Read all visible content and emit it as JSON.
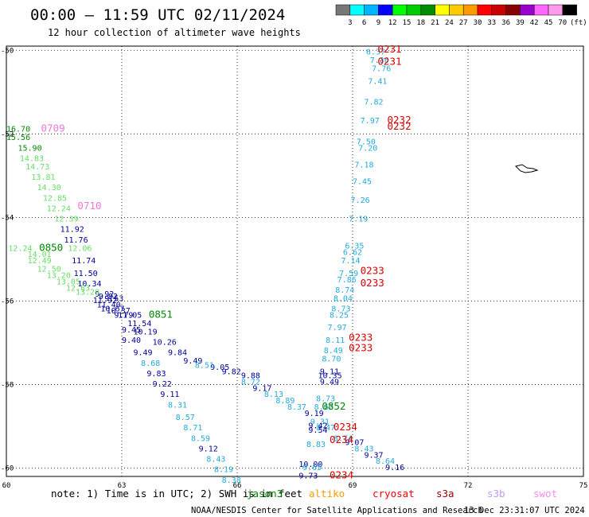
{
  "header": {
    "title": "00:00 – 11:59 UTC 02/11/2024",
    "subtitle": "12 hour collection of altimeter wave heights"
  },
  "scale": {
    "unit": "(ft)",
    "ticks": [
      "3",
      "6",
      "9",
      "12",
      "15",
      "18",
      "21",
      "24",
      "27",
      "30",
      "33",
      "36",
      "39",
      "42",
      "45",
      "70"
    ],
    "colors": [
      "#777777",
      "#00ffff",
      "#00b4ff",
      "#0000ff",
      "#00ff00",
      "#00cc00",
      "#008c00",
      "#ffff00",
      "#ffcc00",
      "#ff9900",
      "#ff0000",
      "#cc0000",
      "#880000",
      "#9900cc",
      "#ff66ff",
      "#ff99ee",
      "#000000"
    ]
  },
  "footer": {
    "note": "note:  1) Time is in UTC;  2) SWH is in feet",
    "credit": "NOAA/NESDIS Center for Satellite Applications and Research",
    "timestamp": "13 Dec 23:31:07 UTC 2024",
    "satellites": [
      {
        "name": "jason3",
        "color": "#008800"
      },
      {
        "name": "altiko",
        "color": "#ff9900"
      },
      {
        "name": "cryosat",
        "color": "#ff0000"
      },
      {
        "name": "s3a",
        "color": "#990000"
      },
      {
        "name": "s3b",
        "color": "#bb99ff"
      },
      {
        "name": "swot",
        "color": "#ff88ee"
      }
    ]
  },
  "chart_data": {
    "type": "scatter",
    "xlim": [
      60,
      75
    ],
    "ylim": [
      -60.2,
      -49.9
    ],
    "x_ticks": [
      "60",
      "63",
      "66",
      "69",
      "72",
      "75"
    ],
    "y_ticks": [
      "-50",
      "-52",
      "-54",
      "-56",
      "-58",
      "-60"
    ],
    "grid": true,
    "colors": {
      "cyan": "#22aadd",
      "blue": "#000099",
      "lightgreen": "#66dd66",
      "green": "#008800",
      "red": "#dd0000",
      "pink": "#ee77dd"
    },
    "labels": [
      {
        "x": 69.35,
        "y": -50.1,
        "text": "6.37",
        "c": "cyan"
      },
      {
        "x": 69.45,
        "y": -50.3,
        "text": "7.36",
        "c": "cyan"
      },
      {
        "x": 69.5,
        "y": -50.5,
        "text": "7.76",
        "c": "cyan"
      },
      {
        "x": 69.4,
        "y": -50.8,
        "text": "7.41",
        "c": "cyan"
      },
      {
        "x": 69.3,
        "y": -51.3,
        "text": "7.82",
        "c": "cyan"
      },
      {
        "x": 69.2,
        "y": -51.75,
        "text": "7.97",
        "c": "cyan"
      },
      {
        "x": 69.1,
        "y": -52.25,
        "text": "7.50",
        "c": "cyan"
      },
      {
        "x": 69.15,
        "y": -52.4,
        "text": "7.20",
        "c": "cyan"
      },
      {
        "x": 69.05,
        "y": -52.8,
        "text": "7.18",
        "c": "cyan"
      },
      {
        "x": 69.0,
        "y": -53.2,
        "text": "7.45",
        "c": "cyan"
      },
      {
        "x": 68.95,
        "y": -53.65,
        "text": "7.26",
        "c": "cyan"
      },
      {
        "x": 68.9,
        "y": -54.1,
        "text": "7.19",
        "c": "cyan"
      },
      {
        "x": 68.8,
        "y": -54.75,
        "text": "6.35",
        "c": "cyan"
      },
      {
        "x": 68.75,
        "y": -54.9,
        "text": "6.62",
        "c": "cyan"
      },
      {
        "x": 68.7,
        "y": -55.1,
        "text": "7.14",
        "c": "cyan"
      },
      {
        "x": 68.65,
        "y": -55.4,
        "text": "7.59",
        "c": "cyan"
      },
      {
        "x": 68.6,
        "y": -55.55,
        "text": "7.86",
        "c": "cyan"
      },
      {
        "x": 68.55,
        "y": -55.8,
        "text": "8.74",
        "c": "cyan"
      },
      {
        "x": 68.5,
        "y": -56.0,
        "text": "8.04",
        "c": "cyan"
      },
      {
        "x": 68.45,
        "y": -56.25,
        "text": "8.73",
        "c": "cyan"
      },
      {
        "x": 68.4,
        "y": -56.4,
        "text": "8.25",
        "c": "cyan"
      },
      {
        "x": 68.35,
        "y": -56.7,
        "text": "7.97",
        "c": "cyan"
      },
      {
        "x": 68.3,
        "y": -57.0,
        "text": "8.11",
        "c": "cyan"
      },
      {
        "x": 68.25,
        "y": -57.25,
        "text": "8.49",
        "c": "cyan"
      },
      {
        "x": 68.2,
        "y": -57.45,
        "text": "8.70",
        "c": "cyan"
      },
      {
        "x": 68.15,
        "y": -57.75,
        "text": "9.11",
        "c": "blue"
      },
      {
        "x": 68.1,
        "y": -57.85,
        "text": "10.35",
        "c": "blue"
      },
      {
        "x": 68.15,
        "y": -58.0,
        "text": "9.49",
        "c": "blue"
      },
      {
        "x": 68.05,
        "y": -58.4,
        "text": "8.73",
        "c": "cyan"
      },
      {
        "x": 68.0,
        "y": -58.6,
        "text": "8.62",
        "c": "cyan"
      },
      {
        "x": 67.75,
        "y": -58.75,
        "text": "9.19",
        "c": "blue"
      },
      {
        "x": 67.9,
        "y": -58.95,
        "text": "9.31",
        "c": "cyan"
      },
      {
        "x": 67.85,
        "y": -59.05,
        "text": "9.42",
        "c": "blue"
      },
      {
        "x": 68.05,
        "y": -59.1,
        "text": "8.47",
        "c": "cyan"
      },
      {
        "x": 67.85,
        "y": -59.15,
        "text": "9.54",
        "c": "blue"
      },
      {
        "x": 67.8,
        "y": -59.5,
        "text": "8.83",
        "c": "cyan"
      },
      {
        "x": 67.6,
        "y": -59.97,
        "text": "10.00",
        "c": "blue"
      },
      {
        "x": 67.7,
        "y": -60.05,
        "text": "9.65",
        "c": "cyan"
      },
      {
        "x": 67.6,
        "y": -60.25,
        "text": "9.73",
        "c": "blue"
      },
      {
        "x": 65.6,
        "y": -57.75,
        "text": "9.82",
        "c": "blue"
      },
      {
        "x": 66.1,
        "y": -57.85,
        "text": "9.88",
        "c": "blue"
      },
      {
        "x": 65.3,
        "y": -57.65,
        "text": "9.05",
        "c": "blue"
      },
      {
        "x": 66.1,
        "y": -58.0,
        "text": "8.72",
        "c": "cyan"
      },
      {
        "x": 66.4,
        "y": -58.15,
        "text": "9.17",
        "c": "blue"
      },
      {
        "x": 66.7,
        "y": -58.3,
        "text": "8.13",
        "c": "cyan"
      },
      {
        "x": 67.0,
        "y": -58.45,
        "text": "8.89",
        "c": "cyan"
      },
      {
        "x": 67.3,
        "y": -58.6,
        "text": "8.37",
        "c": "cyan"
      },
      {
        "x": 68.5,
        "y": -59.35,
        "text": "8.74",
        "c": "cyan"
      },
      {
        "x": 68.8,
        "y": -59.45,
        "text": "9.07",
        "c": "blue"
      },
      {
        "x": 69.05,
        "y": -59.6,
        "text": "8.43",
        "c": "cyan"
      },
      {
        "x": 69.3,
        "y": -59.75,
        "text": "9.37",
        "c": "blue"
      },
      {
        "x": 69.6,
        "y": -59.9,
        "text": "8.64",
        "c": "cyan"
      },
      {
        "x": 69.85,
        "y": -60.05,
        "text": "9.16",
        "c": "blue"
      },
      {
        "x": 62.4,
        "y": -55.95,
        "text": "9.92",
        "c": "blue"
      },
      {
        "x": 62.55,
        "y": -56.0,
        "text": "9.53",
        "c": "blue"
      },
      {
        "x": 62.25,
        "y": -56.05,
        "text": "11.92",
        "c": "blue"
      },
      {
        "x": 62.35,
        "y": -56.15,
        "text": "11.40",
        "c": "blue"
      },
      {
        "x": 62.45,
        "y": -56.25,
        "text": "10.67",
        "c": "blue"
      },
      {
        "x": 62.8,
        "y": -56.4,
        "text": "9.79",
        "c": "blue"
      },
      {
        "x": 62.6,
        "y": -56.3,
        "text": "10.37",
        "c": "blue"
      },
      {
        "x": 62.9,
        "y": -56.4,
        "text": "11.05",
        "c": "blue"
      },
      {
        "x": 63.15,
        "y": -56.6,
        "text": "11.54",
        "c": "blue"
      },
      {
        "x": 63.0,
        "y": -56.75,
        "text": "9.45",
        "c": "blue"
      },
      {
        "x": 63.3,
        "y": -56.8,
        "text": "10.19",
        "c": "blue"
      },
      {
        "x": 63.0,
        "y": -57.0,
        "text": "9.40",
        "c": "blue"
      },
      {
        "x": 63.8,
        "y": -57.05,
        "text": "10.26",
        "c": "blue"
      },
      {
        "x": 63.3,
        "y": -57.3,
        "text": "9.49",
        "c": "blue"
      },
      {
        "x": 64.2,
        "y": -57.3,
        "text": "9.84",
        "c": "blue"
      },
      {
        "x": 64.6,
        "y": -57.5,
        "text": "9.49",
        "c": "blue"
      },
      {
        "x": 64.9,
        "y": -57.6,
        "text": "8.51",
        "c": "cyan"
      },
      {
        "x": 63.5,
        "y": -57.55,
        "text": "8.68",
        "c": "cyan"
      },
      {
        "x": 63.65,
        "y": -57.8,
        "text": "9.83",
        "c": "blue"
      },
      {
        "x": 63.8,
        "y": -58.05,
        "text": "9.22",
        "c": "blue"
      },
      {
        "x": 64.0,
        "y": -58.3,
        "text": "9.11",
        "c": "blue"
      },
      {
        "x": 64.2,
        "y": -58.55,
        "text": "8.31",
        "c": "cyan"
      },
      {
        "x": 64.4,
        "y": -58.85,
        "text": "8.57",
        "c": "cyan"
      },
      {
        "x": 64.6,
        "y": -59.1,
        "text": "8.71",
        "c": "cyan"
      },
      {
        "x": 64.8,
        "y": -59.35,
        "text": "8.59",
        "c": "cyan"
      },
      {
        "x": 65.0,
        "y": -59.6,
        "text": "9.12",
        "c": "blue"
      },
      {
        "x": 65.2,
        "y": -59.85,
        "text": "8.43",
        "c": "cyan"
      },
      {
        "x": 65.4,
        "y": -60.1,
        "text": "8.19",
        "c": "cyan"
      },
      {
        "x": 65.6,
        "y": -60.35,
        "text": "8.38",
        "c": "cyan"
      },
      {
        "x": 60.0,
        "y": -51.95,
        "text": "16.70",
        "c": "green"
      },
      {
        "x": 60.0,
        "y": -52.15,
        "text": "15.56",
        "c": "green"
      },
      {
        "x": 60.3,
        "y": -52.4,
        "text": "15.90",
        "c": "green"
      },
      {
        "x": 60.35,
        "y": -52.65,
        "text": "14.83",
        "c": "lightgreen"
      },
      {
        "x": 60.5,
        "y": -52.85,
        "text": "14.73",
        "c": "lightgreen"
      },
      {
        "x": 60.65,
        "y": -53.1,
        "text": "13.81",
        "c": "lightgreen"
      },
      {
        "x": 60.8,
        "y": -53.35,
        "text": "14.30",
        "c": "lightgreen"
      },
      {
        "x": 60.95,
        "y": -53.6,
        "text": "12.85",
        "c": "lightgreen"
      },
      {
        "x": 61.05,
        "y": -53.85,
        "text": "12.24",
        "c": "lightgreen"
      },
      {
        "x": 61.25,
        "y": -54.1,
        "text": "12.39",
        "c": "lightgreen"
      },
      {
        "x": 61.4,
        "y": -54.35,
        "text": "11.92",
        "c": "blue"
      },
      {
        "x": 61.5,
        "y": -54.6,
        "text": "11.76",
        "c": "blue"
      },
      {
        "x": 61.7,
        "y": -55.1,
        "text": "11.74",
        "c": "blue"
      },
      {
        "x": 61.75,
        "y": -55.4,
        "text": "11.50",
        "c": "blue"
      },
      {
        "x": 61.85,
        "y": -55.65,
        "text": "10.34",
        "c": "blue"
      },
      {
        "x": 62.3,
        "y": -55.9,
        "text": "9.92",
        "c": "blue"
      },
      {
        "x": 61.6,
        "y": -54.8,
        "text": "12.06",
        "c": "lightgreen"
      },
      {
        "x": 60.05,
        "y": -54.8,
        "text": "12.24",
        "c": "lightgreen"
      },
      {
        "x": 60.55,
        "y": -54.95,
        "text": "14.01",
        "c": "lightgreen"
      },
      {
        "x": 60.55,
        "y": -55.1,
        "text": "12.49",
        "c": "lightgreen"
      },
      {
        "x": 60.8,
        "y": -55.3,
        "text": "12.50",
        "c": "lightgreen"
      },
      {
        "x": 61.05,
        "y": -55.45,
        "text": "13.20",
        "c": "lightgreen"
      },
      {
        "x": 61.3,
        "y": -55.6,
        "text": "13.05",
        "c": "lightgreen"
      },
      {
        "x": 61.55,
        "y": -55.75,
        "text": "12.63",
        "c": "lightgreen"
      },
      {
        "x": 61.8,
        "y": -55.85,
        "text": "13.29",
        "c": "lightgreen"
      }
    ],
    "tracks": [
      {
        "x": 69.65,
        "y": -50.05,
        "text": "0231",
        "c": "red"
      },
      {
        "x": 69.65,
        "y": -50.35,
        "text": "0231",
        "c": "red"
      },
      {
        "x": 69.9,
        "y": -51.75,
        "text": "0232",
        "c": "red"
      },
      {
        "x": 69.9,
        "y": -51.9,
        "text": "0232",
        "c": "red"
      },
      {
        "x": 60.9,
        "y": -51.95,
        "text": "0709",
        "c": "pink"
      },
      {
        "x": 61.85,
        "y": -53.8,
        "text": "0710",
        "c": "pink"
      },
      {
        "x": 60.85,
        "y": -54.8,
        "text": "0850",
        "c": "green"
      },
      {
        "x": 69.2,
        "y": -55.35,
        "text": "0233",
        "c": "red"
      },
      {
        "x": 69.2,
        "y": -55.65,
        "text": "0233",
        "c": "red"
      },
      {
        "x": 63.7,
        "y": -56.4,
        "text": "0851",
        "c": "green"
      },
      {
        "x": 68.9,
        "y": -56.95,
        "text": "0233",
        "c": "red"
      },
      {
        "x": 68.9,
        "y": -57.2,
        "text": "0233",
        "c": "red"
      },
      {
        "x": 68.2,
        "y": -58.6,
        "text": "0852",
        "c": "green"
      },
      {
        "x": 68.5,
        "y": -59.1,
        "text": "0234",
        "c": "red"
      },
      {
        "x": 68.4,
        "y": -59.4,
        "text": "0234",
        "c": "red"
      },
      {
        "x": 68.4,
        "y": -60.25,
        "text": "0234",
        "c": "red"
      }
    ]
  }
}
